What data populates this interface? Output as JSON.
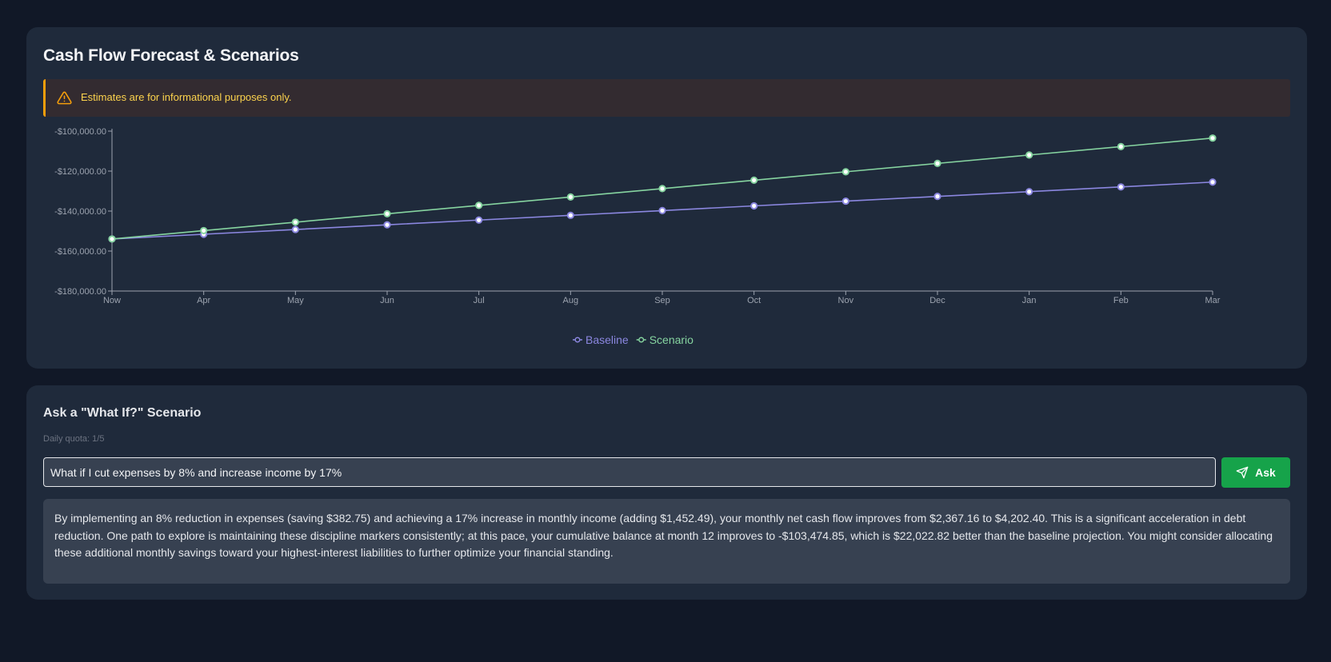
{
  "forecast": {
    "title": "Cash Flow Forecast & Scenarios",
    "alert_icon": "warning-triangle-icon",
    "alert_text": "Estimates are for informational purposes only."
  },
  "chart_data": {
    "type": "line",
    "title": "",
    "xlabel": "",
    "ylabel": "",
    "categories": [
      "Now",
      "Apr",
      "May",
      "Jun",
      "Jul",
      "Aug",
      "Sep",
      "Oct",
      "Nov",
      "Dec",
      "Jan",
      "Feb",
      "Mar"
    ],
    "ylim": [
      -180000,
      -100000
    ],
    "yticks": [
      -180000,
      -160000,
      -140000,
      -120000,
      -100000
    ],
    "ytick_labels": [
      "-$180,000.00",
      "-$160,000.00",
      "-$140,000.00",
      "-$120,000.00",
      "-$100,000.00"
    ],
    "grid": false,
    "legend": "bottom-center",
    "series": [
      {
        "name": "Baseline",
        "color": "#8b87e0",
        "values": [
          -153970,
          -151600,
          -149230,
          -146870,
          -144500,
          -142130,
          -139760,
          -137400,
          -135030,
          -132660,
          -130290,
          -127920,
          -125500
        ]
      },
      {
        "name": "Scenario",
        "color": "#86d4a0",
        "values": [
          -153970,
          -149770,
          -145570,
          -141360,
          -137160,
          -132960,
          -128760,
          -124560,
          -120350,
          -116150,
          -111950,
          -107750,
          -103475
        ]
      }
    ]
  },
  "whatif": {
    "title": "Ask a \"What If?\" Scenario",
    "quota": "Daily quota: 1/5",
    "input_value": "What if I cut expenses by 8% and increase income by 17%",
    "ask_label": "Ask",
    "ask_icon": "send-icon",
    "answer": "By implementing an 8% reduction in expenses (saving $382.75) and achieving a 17% increase in monthly income (adding $1,452.49), your monthly net cash flow improves from $2,367.16 to $4,202.40. This is a significant acceleration in debt reduction. One path to explore is maintaining these discipline markers consistently; at this pace, your cumulative balance at month 12 improves to -$103,474.85, which is $22,022.82 better than the baseline projection. You might consider allocating these additional monthly savings toward your highest-interest liabilities to further optimize your financial standing."
  }
}
